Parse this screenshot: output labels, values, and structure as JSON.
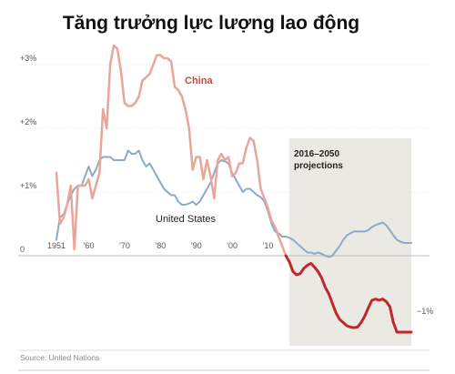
{
  "chart_data": {
    "type": "line",
    "title": "Tăng trưởng lực lượng lao động",
    "x_ticks": [
      {
        "value": 1951,
        "label": "1951"
      },
      {
        "value": 1960,
        "label": "’60"
      },
      {
        "value": 1970,
        "label": "’70"
      },
      {
        "value": 1980,
        "label": "’80"
      },
      {
        "value": 1990,
        "label": "’90"
      },
      {
        "value": 2000,
        "label": "’00"
      },
      {
        "value": 2010,
        "label": "’10"
      }
    ],
    "y_ticks": [
      {
        "value": 3,
        "label": "+3%"
      },
      {
        "value": 2,
        "label": "+2%"
      },
      {
        "value": 1,
        "label": "+1%"
      },
      {
        "value": 0,
        "label": "0"
      }
    ],
    "y_right_label": {
      "value": -1,
      "label": "−1%"
    },
    "xlim": [
      1951,
      2050
    ],
    "ylim": [
      -1.4,
      3.3
    ],
    "projection": {
      "start": 2016,
      "end": 2050,
      "label_line1": "2016–2050",
      "label_line2": "projections"
    },
    "source": "Source: United Nations",
    "colors": {
      "china_hist": "#e8a69a",
      "china_proj": "#c0282d",
      "us": "#8fa9c9",
      "shade": "#ebe9e3",
      "china_label": "#c24a3e"
    },
    "series": [
      {
        "name": "China",
        "x": [
          1951,
          1952,
          1953,
          1954,
          1955,
          1956,
          1957,
          1958,
          1959,
          1960,
          1961,
          1962,
          1963,
          1964,
          1965,
          1966,
          1967,
          1968,
          1969,
          1970,
          1971,
          1972,
          1973,
          1974,
          1975,
          1976,
          1977,
          1978,
          1979,
          1980,
          1981,
          1982,
          1983,
          1984,
          1985,
          1986,
          1987,
          1988,
          1989,
          1990,
          1991,
          1992,
          1993,
          1994,
          1995,
          1996,
          1997,
          1998,
          1999,
          2000,
          2001,
          2002,
          2003,
          2004,
          2005,
          2006,
          2007,
          2008,
          2009,
          2010,
          2011,
          2012,
          2013,
          2014,
          2015,
          2016,
          2017,
          2018,
          2019,
          2020,
          2021,
          2022,
          2023,
          2024,
          2025,
          2026,
          2027,
          2028,
          2029,
          2030,
          2031,
          2032,
          2033,
          2034,
          2035,
          2036,
          2037,
          2038,
          2039,
          2040,
          2041,
          2042,
          2043,
          2044,
          2045,
          2046,
          2047,
          2048,
          2049,
          2050
        ],
        "y": [
          1.3,
          0.5,
          0.6,
          0.8,
          1.1,
          0.1,
          1.1,
          1.1,
          1.1,
          1.2,
          0.9,
          1.1,
          1.3,
          2.3,
          2.0,
          3.0,
          3.3,
          3.25,
          2.9,
          2.4,
          2.35,
          2.35,
          2.4,
          2.5,
          2.75,
          2.8,
          2.85,
          3.0,
          3.15,
          3.15,
          3.1,
          3.1,
          3.05,
          2.65,
          2.6,
          2.5,
          2.3,
          2.0,
          1.35,
          1.55,
          1.55,
          1.2,
          1.5,
          1.25,
          0.9,
          1.5,
          1.6,
          1.5,
          1.55,
          1.25,
          1.3,
          1.45,
          1.45,
          1.7,
          1.85,
          1.8,
          1.5,
          1.05,
          0.9,
          0.75,
          0.55,
          0.45,
          0.3,
          0.15,
          0.0,
          -0.1,
          -0.25,
          -0.3,
          -0.28,
          -0.2,
          -0.15,
          -0.12,
          -0.18,
          -0.25,
          -0.35,
          -0.5,
          -0.6,
          -0.75,
          -0.9,
          -1.0,
          -1.05,
          -1.1,
          -1.12,
          -1.13,
          -1.12,
          -1.05,
          -0.95,
          -0.82,
          -0.7,
          -0.68,
          -0.7,
          -0.68,
          -0.72,
          -0.8,
          -1.05,
          -1.2,
          -1.2,
          -1.2,
          -1.2,
          -1.2
        ]
      },
      {
        "name": "United States",
        "x": [
          1951,
          1952,
          1953,
          1954,
          1955,
          1956,
          1957,
          1958,
          1959,
          1960,
          1961,
          1962,
          1963,
          1964,
          1965,
          1966,
          1967,
          1968,
          1969,
          1970,
          1971,
          1972,
          1973,
          1974,
          1975,
          1976,
          1977,
          1978,
          1979,
          1980,
          1981,
          1982,
          1983,
          1984,
          1985,
          1986,
          1987,
          1988,
          1989,
          1990,
          1991,
          1992,
          1993,
          1994,
          1995,
          1996,
          1997,
          1998,
          1999,
          2000,
          2001,
          2002,
          2003,
          2004,
          2005,
          2006,
          2007,
          2008,
          2009,
          2010,
          2011,
          2012,
          2013,
          2014,
          2015,
          2016,
          2017,
          2018,
          2019,
          2020,
          2021,
          2022,
          2023,
          2024,
          2025,
          2026,
          2027,
          2028,
          2029,
          2030,
          2031,
          2032,
          2033,
          2034,
          2035,
          2036,
          2037,
          2038,
          2039,
          2040,
          2041,
          2042,
          2043,
          2044,
          2045,
          2046,
          2047,
          2048,
          2049,
          2050
        ],
        "y": [
          0.25,
          0.6,
          0.65,
          0.8,
          0.95,
          1.05,
          1.1,
          1.1,
          1.25,
          1.4,
          1.25,
          1.35,
          1.5,
          1.55,
          1.55,
          1.55,
          1.5,
          1.5,
          1.5,
          1.5,
          1.65,
          1.6,
          1.6,
          1.65,
          1.5,
          1.4,
          1.45,
          1.35,
          1.25,
          1.15,
          1.05,
          1.0,
          0.95,
          0.95,
          0.85,
          0.8,
          0.8,
          0.82,
          0.85,
          0.8,
          0.85,
          0.95,
          1.05,
          1.15,
          1.3,
          1.45,
          1.5,
          1.48,
          1.45,
          1.3,
          1.2,
          1.1,
          1.0,
          1.05,
          1.05,
          1.0,
          0.95,
          0.92,
          0.85,
          0.7,
          0.5,
          0.38,
          0.35,
          0.3,
          0.3,
          0.28,
          0.25,
          0.2,
          0.15,
          0.1,
          0.05,
          0.05,
          0.03,
          0.05,
          0.03,
          0.0,
          -0.02,
          0.0,
          0.08,
          0.15,
          0.25,
          0.32,
          0.35,
          0.38,
          0.38,
          0.38,
          0.38,
          0.4,
          0.45,
          0.48,
          0.5,
          0.52,
          0.48,
          0.4,
          0.32,
          0.25,
          0.22,
          0.2,
          0.2,
          0.2
        ]
      }
    ]
  }
}
